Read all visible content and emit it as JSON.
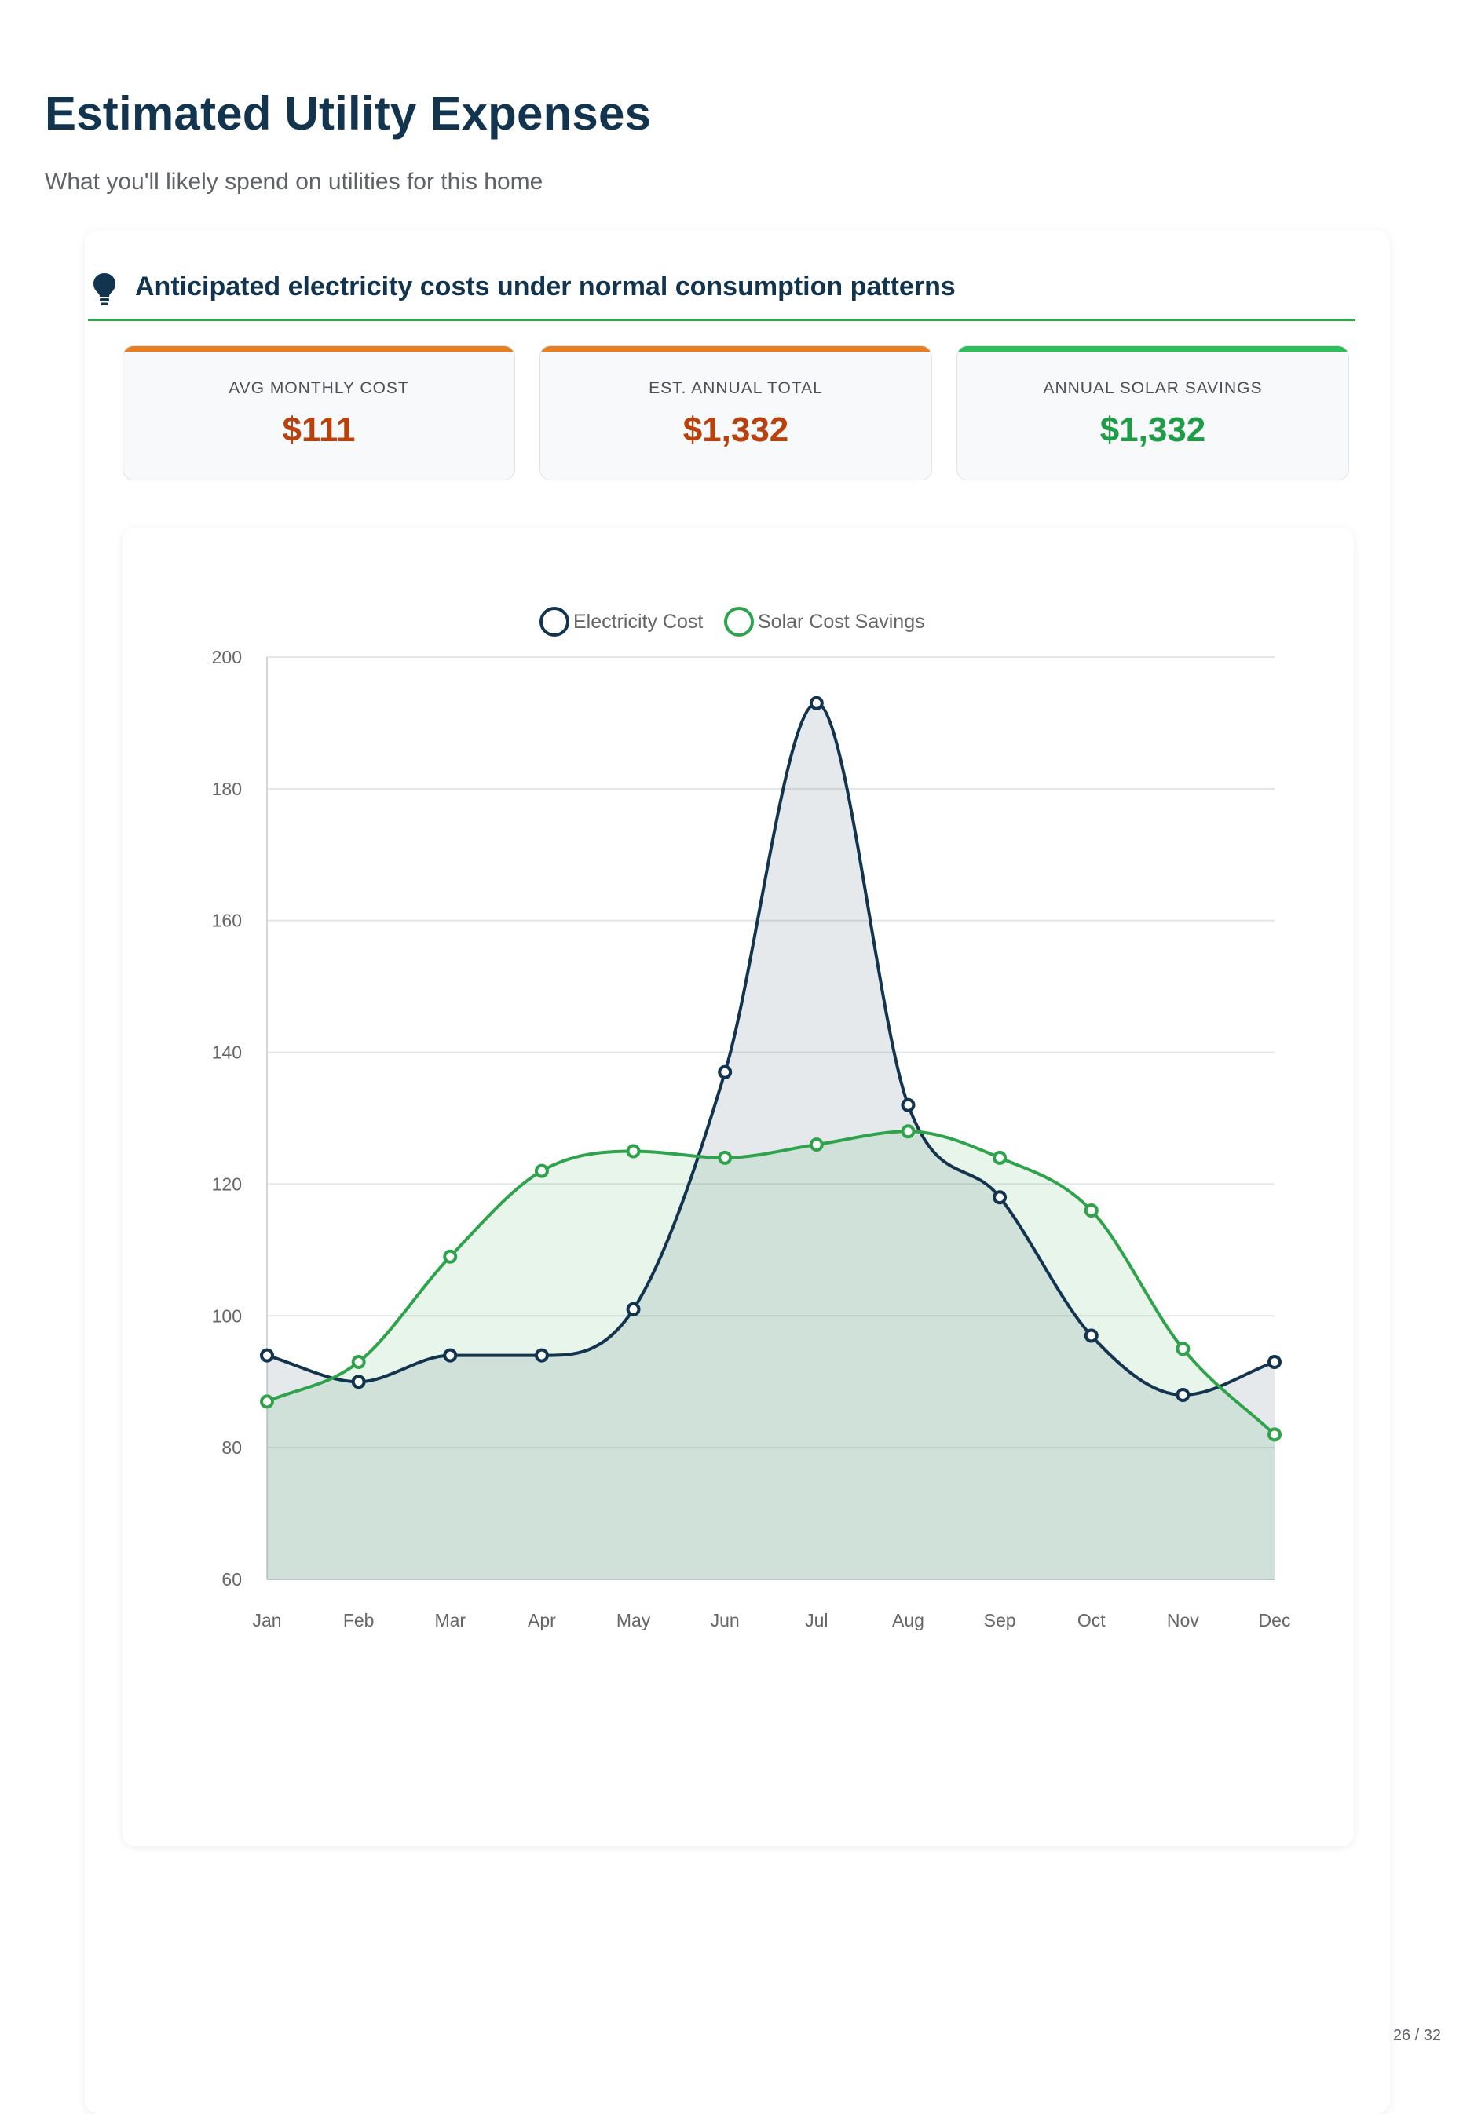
{
  "header": {
    "title": "Estimated Utility Expenses",
    "subtitle": "What you'll likely spend on utilities for this home"
  },
  "section": {
    "title": "Anticipated electricity costs under normal consumption patterns",
    "icon": "lightbulb-icon"
  },
  "stats": [
    {
      "label": "AVG MONTHLY COST",
      "value": "$111",
      "bar_color": "#e67e22",
      "value_color": "#b8410c"
    },
    {
      "label": "EST. ANNUAL TOTAL",
      "value": "$1,332",
      "bar_color": "#e67e22",
      "value_color": "#b8410c"
    },
    {
      "label": "ANNUAL SOLAR SAVINGS",
      "value": "$1,332",
      "bar_color": "#2ebd5a",
      "value_color": "#1f9c47"
    }
  ],
  "chart_data": {
    "type": "line",
    "x": [
      "Jan",
      "Feb",
      "Mar",
      "Apr",
      "May",
      "Jun",
      "Jul",
      "Aug",
      "Sep",
      "Oct",
      "Nov",
      "Dec"
    ],
    "series": [
      {
        "name": "Electricity Cost",
        "color": "#12344f",
        "fill": "rgba(18,52,79,0.11)",
        "values": [
          94,
          90,
          94,
          94,
          101,
          137,
          193,
          132,
          118,
          97,
          88,
          93
        ]
      },
      {
        "name": "Solar Cost Savings",
        "color": "#2fa34c",
        "fill": "rgba(47,163,76,0.11)",
        "values": [
          87,
          93,
          109,
          122,
          125,
          124,
          126,
          128,
          124,
          116,
          95,
          82
        ]
      }
    ],
    "ylim": [
      60,
      200
    ],
    "yticks": [
      60,
      80,
      100,
      120,
      140,
      160,
      180,
      200
    ],
    "grid": true,
    "legend": "top-center",
    "smooth": true
  },
  "footer": {
    "page": "26 / 32"
  }
}
